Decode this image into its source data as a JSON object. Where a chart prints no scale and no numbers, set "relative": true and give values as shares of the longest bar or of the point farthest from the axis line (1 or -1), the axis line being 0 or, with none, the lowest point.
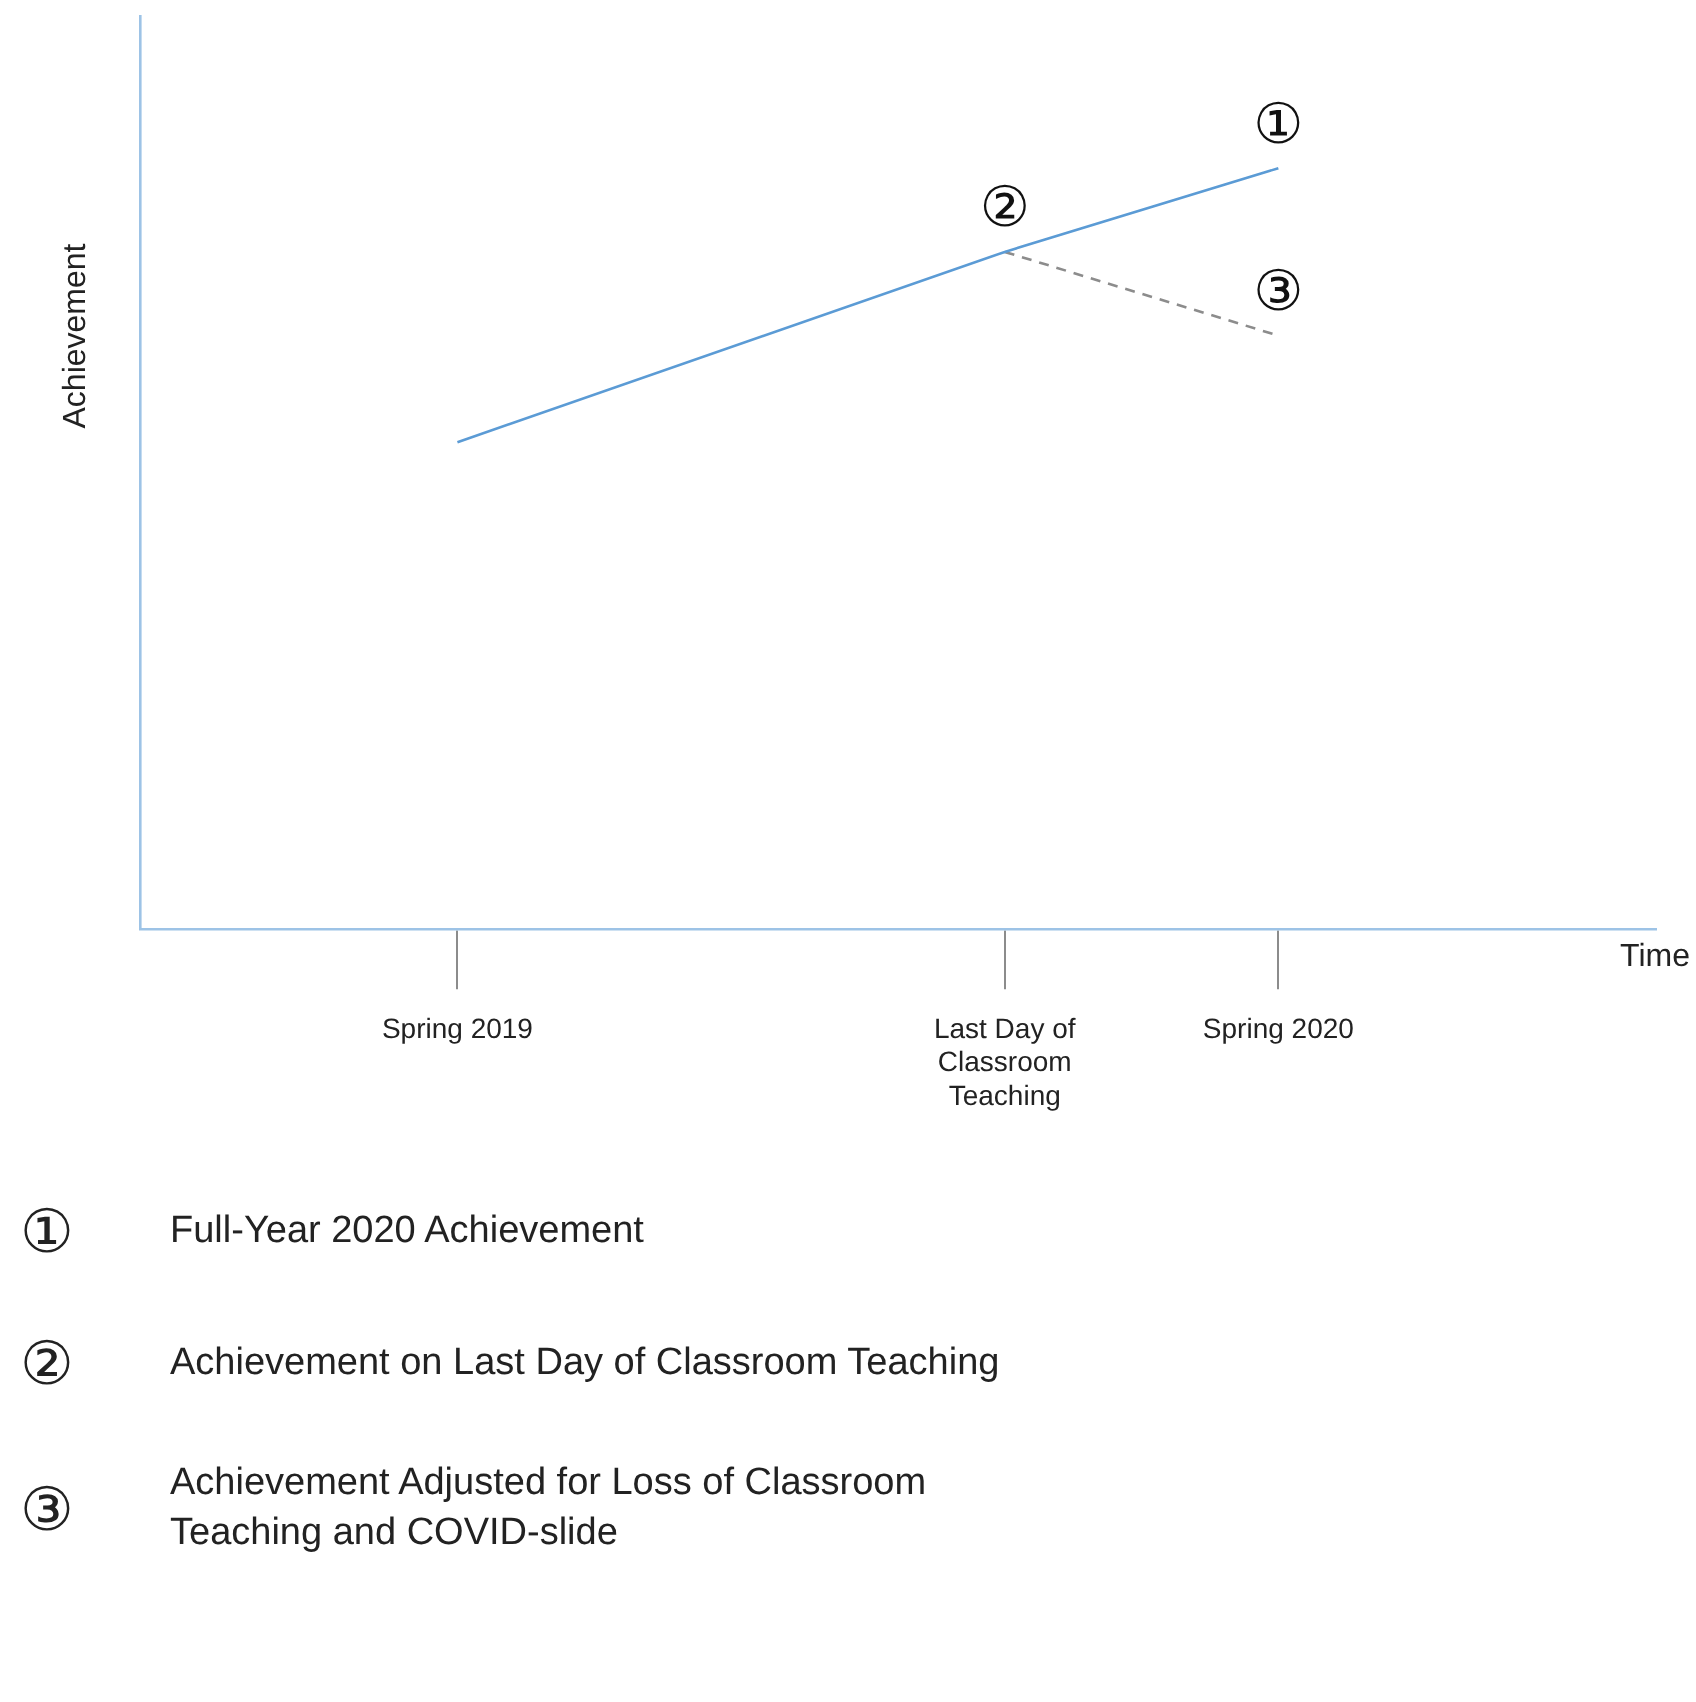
{
  "chart_data": {
    "type": "line",
    "relative": true,
    "categories": [
      "Spring 2019",
      null,
      "Last Day of Classroom Teaching",
      "Spring 2020"
    ],
    "series": [
      {
        "color": "#5b9bd5",
        "line_style": "solid",
        "values": [
          0.64,
          null,
          0.89,
          1
        ]
      },
      {
        "color": "#8c8c8c",
        "line_style": "dashed",
        "values": [
          null,
          null,
          0.89,
          0.78
        ]
      }
    ],
    "marker": "none",
    "grid": false,
    "legend": false,
    "annotations": [
      "Time",
      "Achievement",
      {
        "text": "①",
        "x": "Spring 2020",
        "y": 1
      },
      {
        "text": "②",
        "x": "Last Day of Classroom Teaching",
        "y": 0.89
      },
      {
        "text": "③",
        "x": "Spring 2020",
        "y": 0.78
      },
      "① Full-Year 2020 Achievement",
      "② Achievement on Last Day of Classroom Teaching",
      "③ Achievement Adjusted for Loss of Classroom Teaching and COVID-slide"
    ]
  }
}
